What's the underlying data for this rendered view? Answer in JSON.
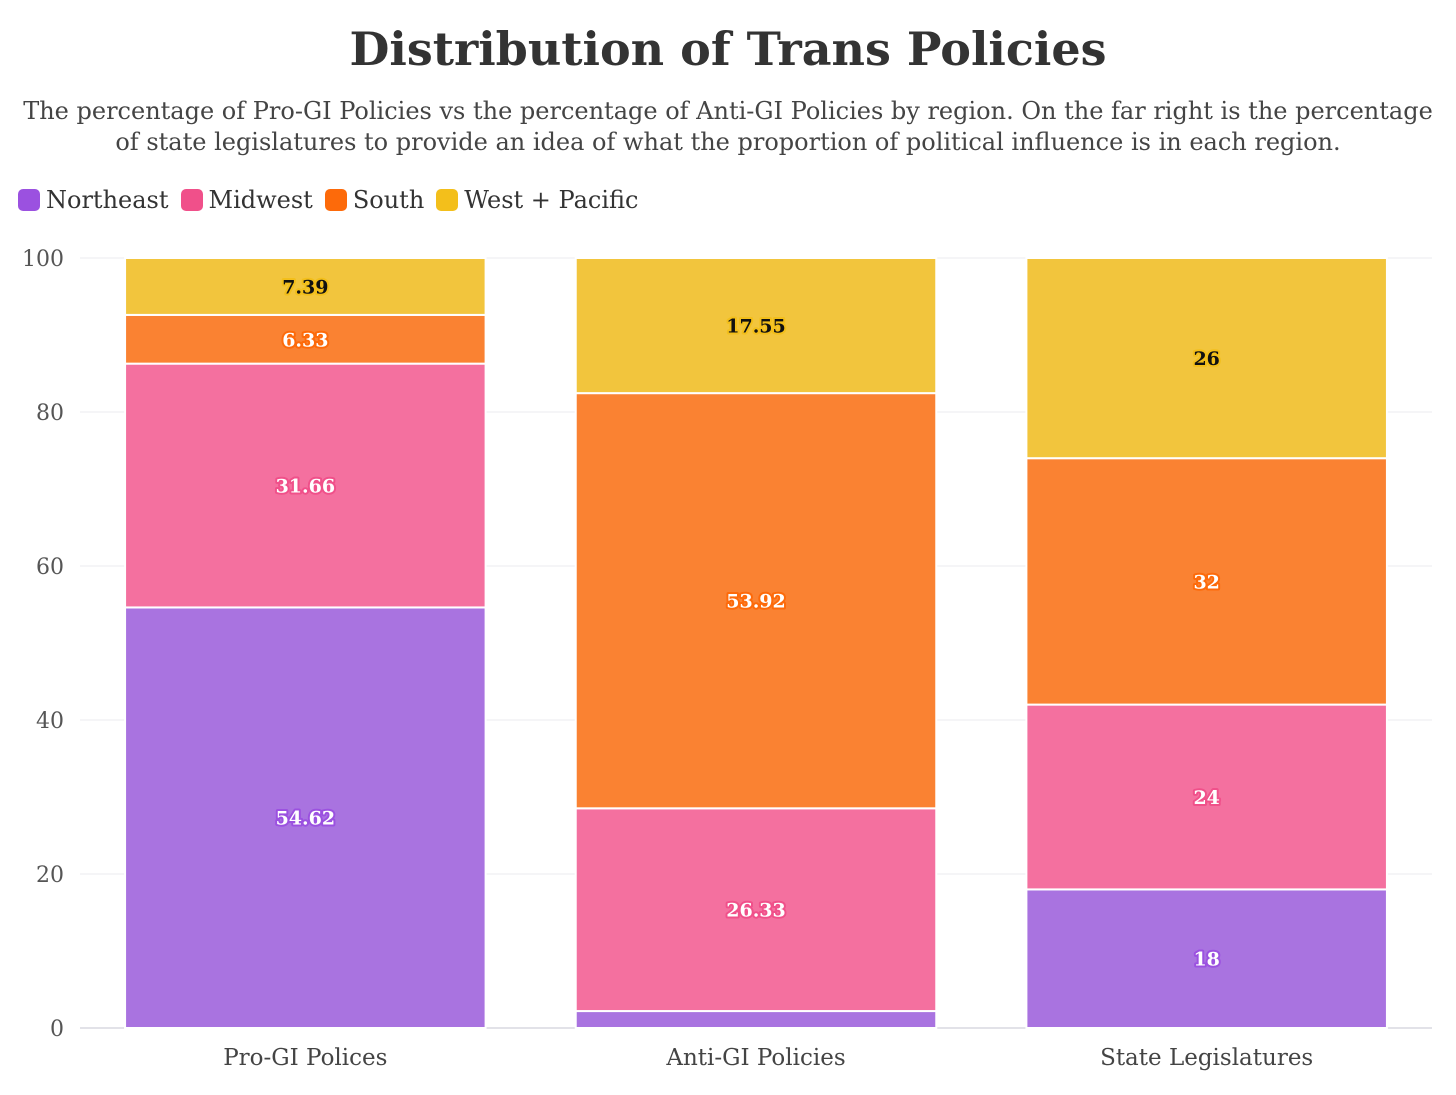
{
  "chart_data": {
    "type": "bar",
    "stacked": true,
    "title": "Distribution of Trans Policies",
    "subtitle": "The percentage of Pro-GI Policies vs the percentage of Anti-GI Policies by region. On the far right is the percentage of state legislatures to provide an idea of what the proportion of political influence is in each region.",
    "categories": [
      "Pro-GI Polices",
      "Anti-GI Policies",
      "State Legislatures"
    ],
    "series": [
      {
        "name": "Northeast",
        "color": "#9b51e0",
        "fill": "#a973e0",
        "label_color": "#ffffff",
        "values": [
          54.62,
          2.2,
          18
        ],
        "labels": [
          "54.62",
          "",
          "18"
        ]
      },
      {
        "name": "Midwest",
        "color": "#f0508a",
        "fill": "#f4709f",
        "label_color": "#ffffff",
        "values": [
          31.66,
          26.33,
          24
        ],
        "labels": [
          "31.66",
          "26.33",
          "24"
        ]
      },
      {
        "name": "South",
        "color": "#fd6a0a",
        "fill": "#fa8232",
        "label_color": "#ffffff",
        "values": [
          6.33,
          53.92,
          32
        ],
        "labels": [
          "6.33",
          "53.92",
          "32"
        ]
      },
      {
        "name": "West + Pacific",
        "color": "#f3bf1b",
        "fill": "#f2c53d",
        "label_color": "#111111",
        "values": [
          7.39,
          17.55,
          26
        ],
        "labels": [
          "7.39",
          "17.55",
          "26"
        ]
      }
    ],
    "ylim": [
      0,
      100
    ],
    "yticks": [
      0,
      20,
      40,
      60,
      80,
      100
    ],
    "grid": true,
    "legend_position": "top-left"
  }
}
